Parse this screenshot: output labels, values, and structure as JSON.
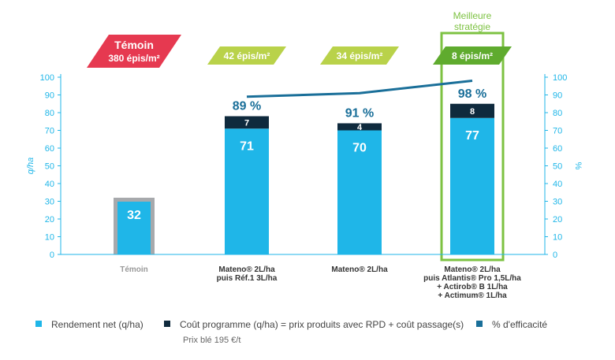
{
  "chart_data": {
    "type": "bar",
    "categories": [
      [
        "Témoin"
      ],
      [
        "Mateno® 2L/ha",
        "puis Réf.1 3L/ha"
      ],
      [
        "Mateno® 2L/ha"
      ],
      [
        "Mateno® 2L/ha",
        "puis Atlantis® Pro 1,5L/ha",
        "+ Actirob® B 1L/ha",
        "+ Actimum® 1L/ha"
      ]
    ],
    "series": [
      {
        "name": "Rendement net (q/ha)",
        "values": [
          32,
          71,
          70,
          77
        ],
        "color": "#1fb6e8"
      },
      {
        "name": "Coût programme (q/ha) = prix produits avec RPD + coût passage(s)",
        "values": [
          null,
          7,
          4,
          8
        ],
        "color": "#0f2a3d"
      },
      {
        "name": "% d'efficacité",
        "values": [
          null,
          89,
          91,
          98
        ],
        "labels": [
          "",
          "89 %",
          "91 %",
          "98 %"
        ],
        "color": "#1a6f99",
        "axis": "right"
      }
    ],
    "ylabel_left": "q/ha",
    "ylabel_right": "%",
    "ylim": [
      0,
      100
    ],
    "yticks": [
      "0",
      "10",
      "20",
      "30",
      "40",
      "50",
      "60",
      "70",
      "80",
      "90",
      "100"
    ],
    "header_tags": [
      {
        "line1": "Témoin",
        "line2": "380 épis/m²",
        "color": "#e63950"
      },
      {
        "line1": "42 épis/m²",
        "color": "#b9d24a"
      },
      {
        "line1": "34 épis/m²",
        "color": "#b9d24a"
      },
      {
        "line1": "8 épis/m²",
        "color": "#5fab2e"
      }
    ],
    "best_label": [
      "Meilleure",
      "stratégie"
    ],
    "best_color": "#7dc242",
    "axis_color": "#1fb6e8",
    "grid": false
  },
  "legend": {
    "net": "Rendement net (q/ha)",
    "cost": "Coût programme (q/ha) = prix produits avec RPD + coût passage(s)",
    "eff": "% d'efficacité",
    "price": "Prix blé 195 €/t"
  }
}
